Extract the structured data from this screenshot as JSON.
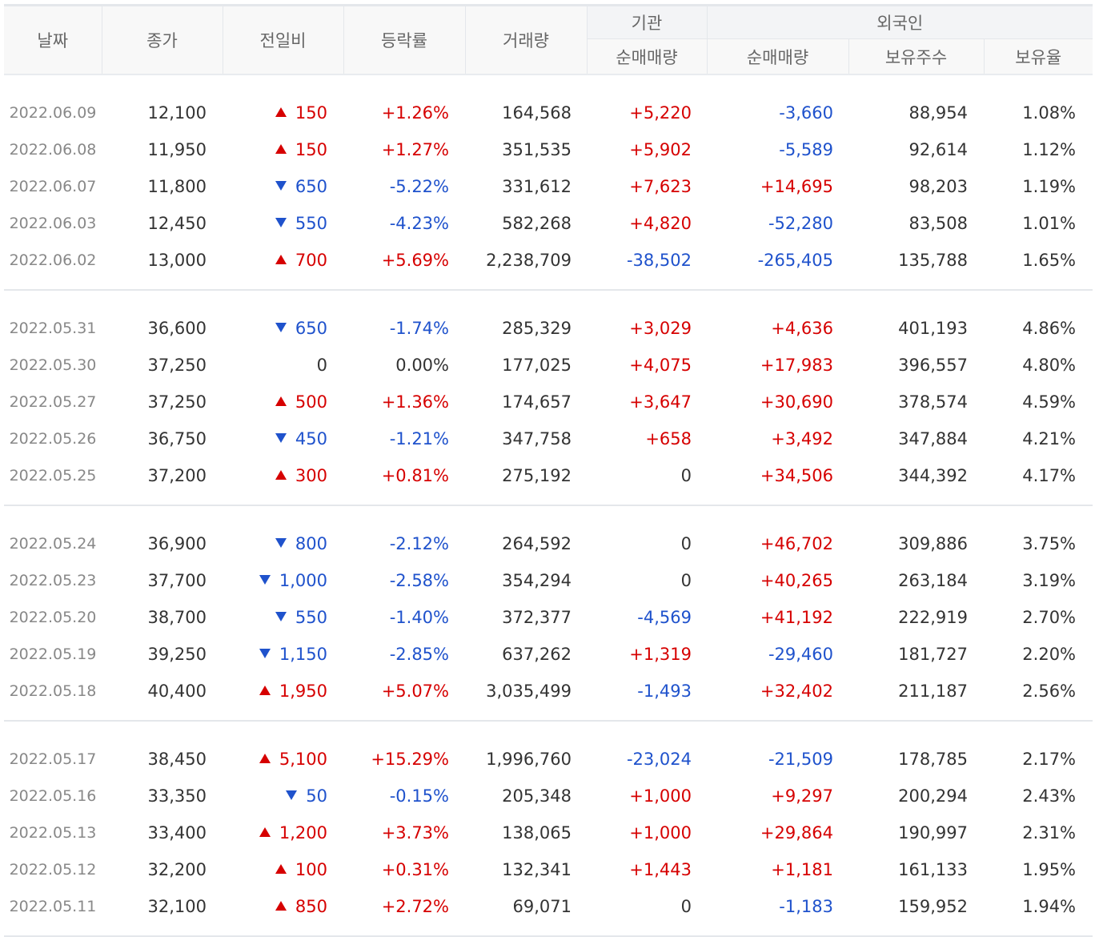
{
  "headers": {
    "date": "날짜",
    "close": "종가",
    "change": "전일비",
    "rate": "등락률",
    "volume": "거래량",
    "institution": "기관",
    "institution_net": "순매매량",
    "foreign": "외국인",
    "foreign_net": "순매매량",
    "foreign_holding": "보유주수",
    "foreign_ratio": "보유율"
  },
  "colors": {
    "up": "#d60000",
    "down": "#1f52cc",
    "neutral": "#333333"
  },
  "groups": [
    [
      {
        "date": "2022.06.09",
        "close": "12,100",
        "dir": "up",
        "change": "150",
        "rate": "+1.26%",
        "volume": "164,568",
        "inst": "+5,220",
        "foreign_net": "-3,660",
        "holding": "88,954",
        "ratio": "1.08%"
      },
      {
        "date": "2022.06.08",
        "close": "11,950",
        "dir": "up",
        "change": "150",
        "rate": "+1.27%",
        "volume": "351,535",
        "inst": "+5,902",
        "foreign_net": "-5,589",
        "holding": "92,614",
        "ratio": "1.12%"
      },
      {
        "date": "2022.06.07",
        "close": "11,800",
        "dir": "down",
        "change": "650",
        "rate": "-5.22%",
        "volume": "331,612",
        "inst": "+7,623",
        "foreign_net": "+14,695",
        "holding": "98,203",
        "ratio": "1.19%"
      },
      {
        "date": "2022.06.03",
        "close": "12,450",
        "dir": "down",
        "change": "550",
        "rate": "-4.23%",
        "volume": "582,268",
        "inst": "+4,820",
        "foreign_net": "-52,280",
        "holding": "83,508",
        "ratio": "1.01%"
      },
      {
        "date": "2022.06.02",
        "close": "13,000",
        "dir": "up",
        "change": "700",
        "rate": "+5.69%",
        "volume": "2,238,709",
        "inst": "-38,502",
        "foreign_net": "-265,405",
        "holding": "135,788",
        "ratio": "1.65%"
      }
    ],
    [
      {
        "date": "2022.05.31",
        "close": "36,600",
        "dir": "down",
        "change": "650",
        "rate": "-1.74%",
        "volume": "285,329",
        "inst": "+3,029",
        "foreign_net": "+4,636",
        "holding": "401,193",
        "ratio": "4.86%"
      },
      {
        "date": "2022.05.30",
        "close": "37,250",
        "dir": "flat",
        "change": "0",
        "rate": "0.00%",
        "volume": "177,025",
        "inst": "+4,075",
        "foreign_net": "+17,983",
        "holding": "396,557",
        "ratio": "4.80%"
      },
      {
        "date": "2022.05.27",
        "close": "37,250",
        "dir": "up",
        "change": "500",
        "rate": "+1.36%",
        "volume": "174,657",
        "inst": "+3,647",
        "foreign_net": "+30,690",
        "holding": "378,574",
        "ratio": "4.59%"
      },
      {
        "date": "2022.05.26",
        "close": "36,750",
        "dir": "down",
        "change": "450",
        "rate": "-1.21%",
        "volume": "347,758",
        "inst": "+658",
        "foreign_net": "+3,492",
        "holding": "347,884",
        "ratio": "4.21%"
      },
      {
        "date": "2022.05.25",
        "close": "37,200",
        "dir": "up",
        "change": "300",
        "rate": "+0.81%",
        "volume": "275,192",
        "inst": "0",
        "foreign_net": "+34,506",
        "holding": "344,392",
        "ratio": "4.17%"
      }
    ],
    [
      {
        "date": "2022.05.24",
        "close": "36,900",
        "dir": "down",
        "change": "800",
        "rate": "-2.12%",
        "volume": "264,592",
        "inst": "0",
        "foreign_net": "+46,702",
        "holding": "309,886",
        "ratio": "3.75%"
      },
      {
        "date": "2022.05.23",
        "close": "37,700",
        "dir": "down",
        "change": "1,000",
        "rate": "-2.58%",
        "volume": "354,294",
        "inst": "0",
        "foreign_net": "+40,265",
        "holding": "263,184",
        "ratio": "3.19%"
      },
      {
        "date": "2022.05.20",
        "close": "38,700",
        "dir": "down",
        "change": "550",
        "rate": "-1.40%",
        "volume": "372,377",
        "inst": "-4,569",
        "foreign_net": "+41,192",
        "holding": "222,919",
        "ratio": "2.70%"
      },
      {
        "date": "2022.05.19",
        "close": "39,250",
        "dir": "down",
        "change": "1,150",
        "rate": "-2.85%",
        "volume": "637,262",
        "inst": "+1,319",
        "foreign_net": "-29,460",
        "holding": "181,727",
        "ratio": "2.20%"
      },
      {
        "date": "2022.05.18",
        "close": "40,400",
        "dir": "up",
        "change": "1,950",
        "rate": "+5.07%",
        "volume": "3,035,499",
        "inst": "-1,493",
        "foreign_net": "+32,402",
        "holding": "211,187",
        "ratio": "2.56%"
      }
    ],
    [
      {
        "date": "2022.05.17",
        "close": "38,450",
        "dir": "up",
        "change": "5,100",
        "rate": "+15.29%",
        "volume": "1,996,760",
        "inst": "-23,024",
        "foreign_net": "-21,509",
        "holding": "178,785",
        "ratio": "2.17%"
      },
      {
        "date": "2022.05.16",
        "close": "33,350",
        "dir": "down",
        "change": "50",
        "rate": "-0.15%",
        "volume": "205,348",
        "inst": "+1,000",
        "foreign_net": "+9,297",
        "holding": "200,294",
        "ratio": "2.43%"
      },
      {
        "date": "2022.05.13",
        "close": "33,400",
        "dir": "up",
        "change": "1,200",
        "rate": "+3.73%",
        "volume": "138,065",
        "inst": "+1,000",
        "foreign_net": "+29,864",
        "holding": "190,997",
        "ratio": "2.31%"
      },
      {
        "date": "2022.05.12",
        "close": "32,200",
        "dir": "up",
        "change": "100",
        "rate": "+0.31%",
        "volume": "132,341",
        "inst": "+1,443",
        "foreign_net": "+1,181",
        "holding": "161,133",
        "ratio": "1.95%"
      },
      {
        "date": "2022.05.11",
        "close": "32,100",
        "dir": "up",
        "change": "850",
        "rate": "+2.72%",
        "volume": "69,071",
        "inst": "0",
        "foreign_net": "-1,183",
        "holding": "159,952",
        "ratio": "1.94%"
      }
    ]
  ]
}
